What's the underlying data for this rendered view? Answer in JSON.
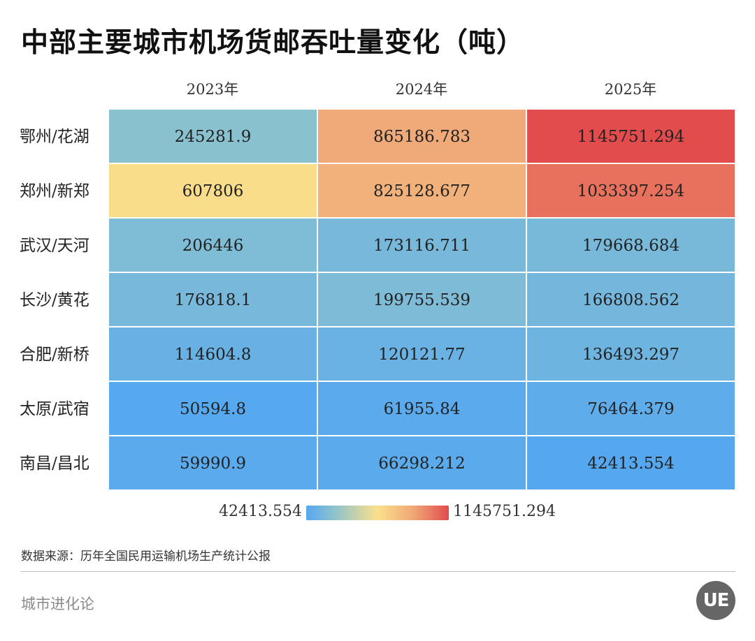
{
  "title": "中部主要城市机场货邮吞吐量变化（吨）",
  "source": "数据来源：历年全国民用运输机场生产统计公报",
  "brand": "城市进化论",
  "logo_text": "UE",
  "colors": {
    "scale_low": "#55a8f0",
    "scale_lowmid": "#8ec3cc",
    "scale_mid": "#fbe08c",
    "scale_high": "#f0a878",
    "scale_max": "#e24c4c"
  },
  "chart_data": {
    "type": "heatmap",
    "title": "中部主要城市机场货邮吞吐量变化（吨）",
    "columns": [
      "2023年",
      "2024年",
      "2025年"
    ],
    "rows": [
      "鄂州/花湖",
      "郑州/新郑",
      "武汉/天河",
      "长沙/黄花",
      "合肥/新桥",
      "太原/武宿",
      "南昌/昌北"
    ],
    "values": [
      [
        "245281.9",
        "865186.783",
        "1145751.294"
      ],
      [
        "607806",
        "825128.677",
        "1033397.254"
      ],
      [
        "206446",
        "173116.711",
        "179668.684"
      ],
      [
        "176818.1",
        "199755.539",
        "166808.562"
      ],
      [
        "114604.8",
        "120121.77",
        "136493.297"
      ],
      [
        "50594.8",
        "61955.84",
        "76464.379"
      ],
      [
        "59990.9",
        "66298.212",
        "42413.554"
      ]
    ],
    "color_scale": {
      "min_label": "42413.554",
      "max_label": "1145751.294",
      "min": 42413.554,
      "max": 1145751.294
    }
  }
}
